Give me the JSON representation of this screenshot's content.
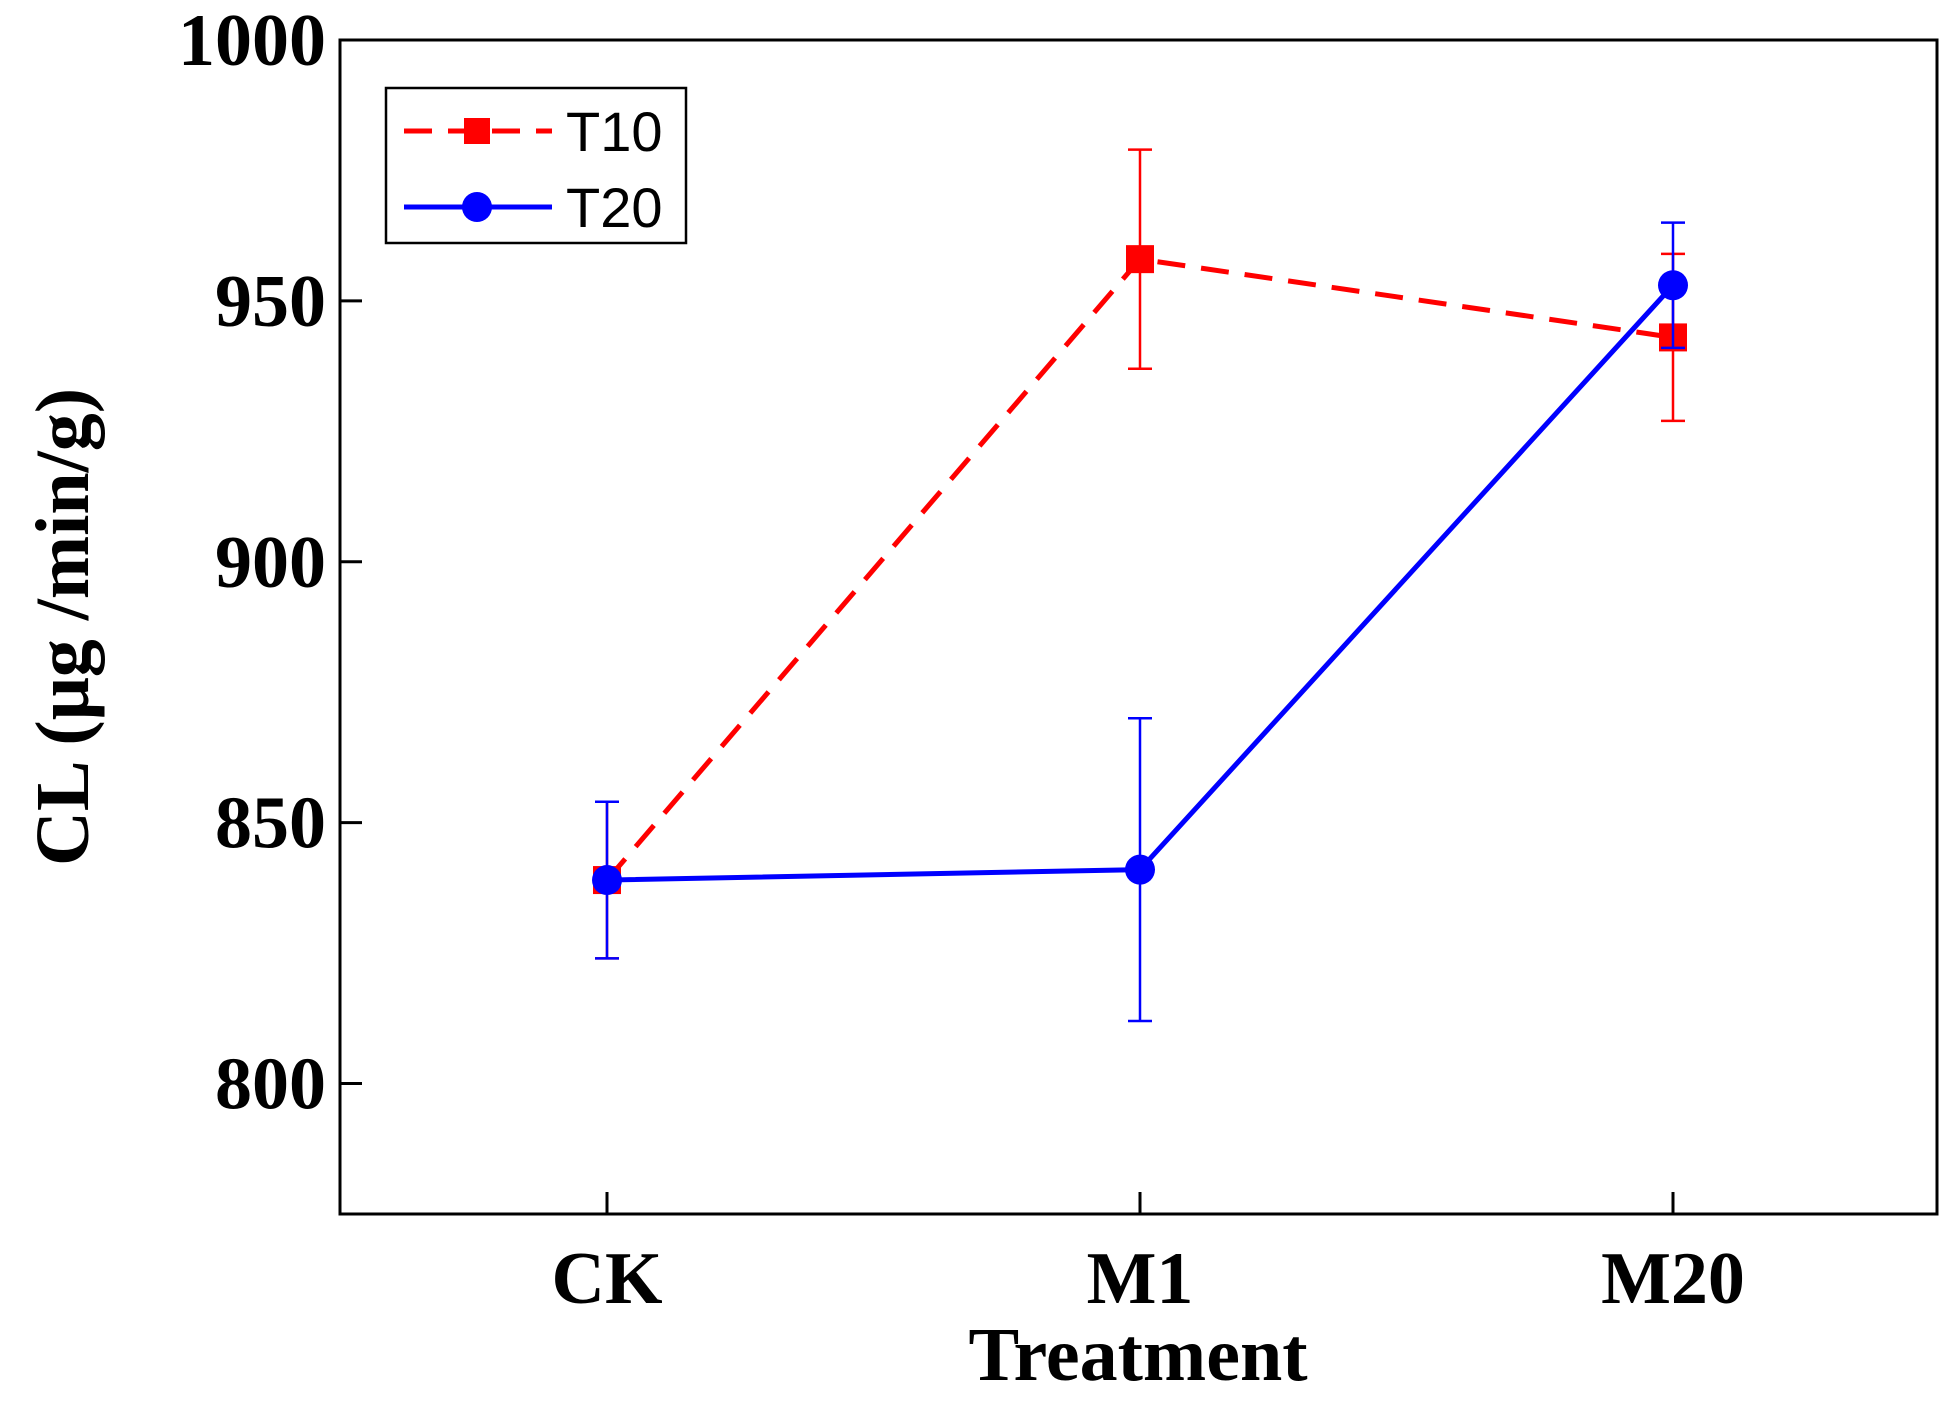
{
  "chart_data": {
    "type": "line",
    "title": "",
    "xlabel": "Treatment",
    "ylabel": "CL (μg /min/g)",
    "categories": [
      "CK",
      "M1",
      "M20"
    ],
    "ylim": [
      775,
      1000
    ],
    "yticks": [
      800,
      850,
      900,
      950,
      1000
    ],
    "ytick_labels": [
      "800",
      "850",
      "900",
      "950",
      "1000"
    ],
    "grid": false,
    "legend_position": "top-left",
    "series": [
      {
        "name": "T10",
        "color": "#ff0000",
        "line_style": "dashed",
        "marker": "square",
        "values": [
          839,
          958,
          943
        ],
        "errors": [
          15,
          21,
          16
        ]
      },
      {
        "name": "T20",
        "color": "#0000ff",
        "line_style": "solid",
        "marker": "circle",
        "values": [
          839,
          841,
          953
        ],
        "errors": [
          15,
          29,
          12
        ]
      }
    ]
  }
}
